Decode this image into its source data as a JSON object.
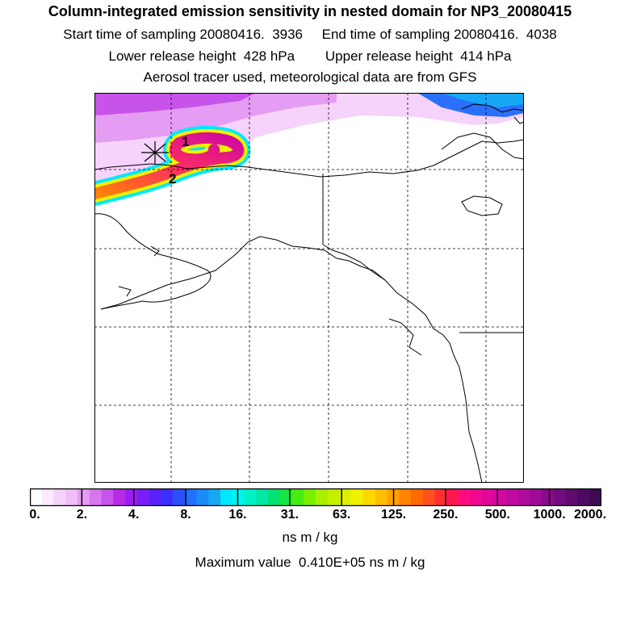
{
  "title": "Column-integrated emission sensitivity in nested domain for NP3_20080415",
  "header": {
    "start_sampling": "Start time of sampling 20080416.  3936",
    "end_sampling": "End time of sampling 20080416.  4038",
    "lower_release": "Lower release height  428 hPa",
    "upper_release": "Upper release height  414 hPa",
    "tracer_info": "Aerosol tracer used, meteorological data are from GFS"
  },
  "map": {
    "markers": [
      {
        "label": "1"
      },
      {
        "label": "2"
      }
    ],
    "release_marker_icon": "asterisk-star-icon"
  },
  "colorbar": {
    "labels": [
      "0.",
      "2.",
      "4.",
      "8.",
      "16.",
      "31.",
      "63.",
      "125.",
      "250.",
      "500.",
      "1000.",
      "2000."
    ],
    "colors": [
      "#ffffff",
      "#fbeafd",
      "#f6d3fb",
      "#efbdf8",
      "#e59cf3",
      "#d777ee",
      "#c853ea",
      "#b72ae6",
      "#9a1ef0",
      "#7a1df6",
      "#5a20fa",
      "#3c2efc",
      "#2a50fc",
      "#2070fb",
      "#1a8cf8",
      "#16a8f5",
      "#00e8ff",
      "#00f4ea",
      "#00f0c8",
      "#00e8a4",
      "#00e272",
      "#18e640",
      "#48ec10",
      "#7af000",
      "#a8f000",
      "#c4f000",
      "#dcf000",
      "#f0f000",
      "#ffd800",
      "#ffbe00",
      "#ffa000",
      "#ff8400",
      "#ff6a00",
      "#ff5020",
      "#ff3030",
      "#ff1850",
      "#ff0a80",
      "#f00890",
      "#e0089a",
      "#d008a0",
      "#c00aa0",
      "#b00c9c",
      "#9c0c94",
      "#880c8a",
      "#720c7c",
      "#600a6e",
      "#4e0a60",
      "#400a52"
    ],
    "units": "ns m / kg"
  },
  "footer": {
    "max_value": "Maximum value  0.410E+05 ns m / kg"
  }
}
